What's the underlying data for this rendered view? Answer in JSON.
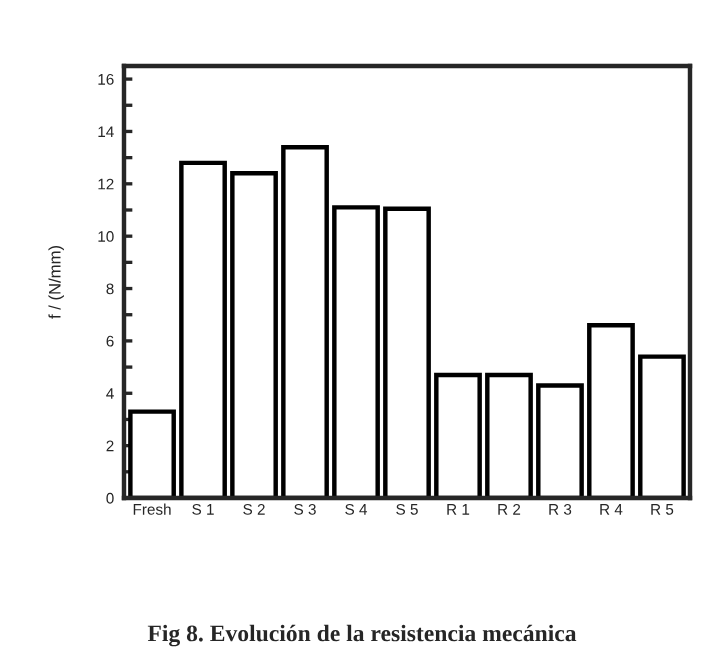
{
  "chart_data": {
    "type": "bar",
    "title": "Fig 8. Evolución de la resistencia mecánica",
    "ylabel": "f / (N/mm)",
    "categories": [
      "Fresh",
      "S 1",
      "S 2",
      "S 3",
      "S 4",
      "S 5",
      "R 1",
      "R 2",
      "R 3",
      "R 4",
      "R 5"
    ],
    "values": [
      3.3,
      12.8,
      12.4,
      13.4,
      11.1,
      11.05,
      4.7,
      4.7,
      4.3,
      6.6,
      5.4
    ],
    "color": "#ffffff",
    "ylim": [
      0,
      16.5
    ],
    "yticks": [
      0,
      {
        "value": 1,
        "label": null
      },
      2,
      {
        "value": 3,
        "label": null
      },
      4,
      {
        "value": 5,
        "label": null
      },
      6,
      {
        "value": 7,
        "label": null
      },
      8,
      {
        "value": 9,
        "label": null
      },
      10,
      {
        "value": 11,
        "label": null
      },
      12,
      {
        "value": 13,
        "label": null
      },
      14,
      {
        "value": 15,
        "label": null
      },
      16
    ],
    "grid": false
  }
}
